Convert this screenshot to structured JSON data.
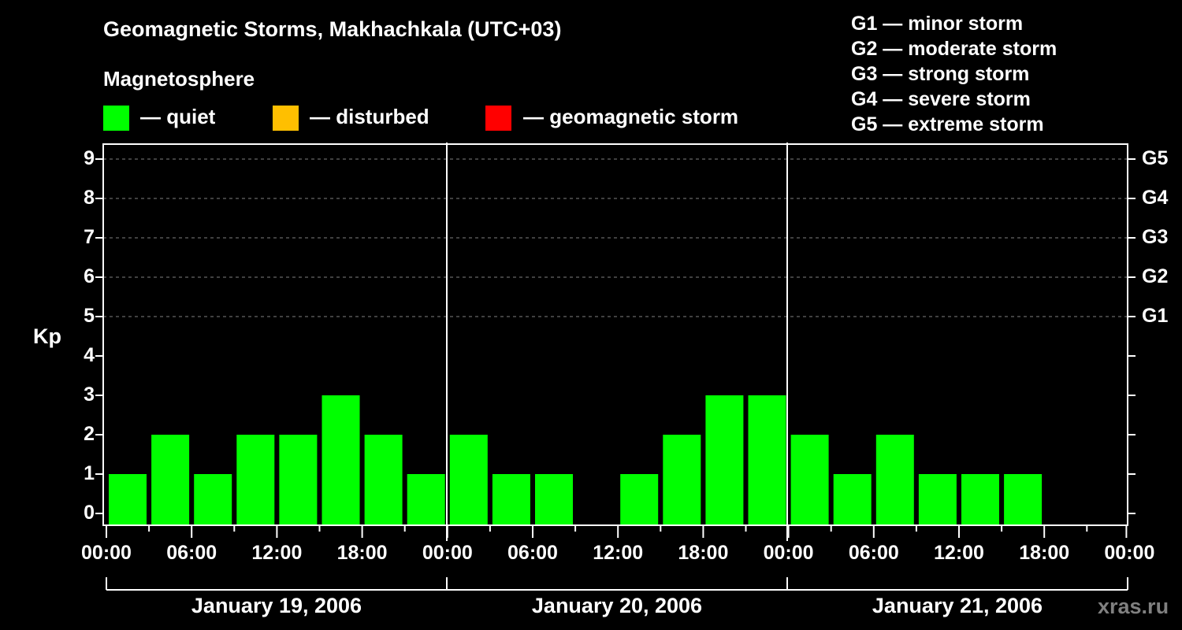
{
  "title": "Geomagnetic Storms, Makhachkala (UTC+03)",
  "legend": {
    "heading": "Magnetosphere",
    "items": [
      {
        "label": "— quiet",
        "color": "#00ff00"
      },
      {
        "label": "— disturbed",
        "color": "#ffbf00"
      },
      {
        "label": "— geomagnetic storm",
        "color": "#ff0000"
      }
    ]
  },
  "g_scale": [
    "G1 — minor storm",
    "G2 — moderate storm",
    "G3 — strong storm",
    "G4 — severe storm",
    "G5 — extreme storm"
  ],
  "y_axis": {
    "label": "Kp",
    "ticks": [
      "0",
      "1",
      "2",
      "3",
      "4",
      "5",
      "6",
      "7",
      "8",
      "9"
    ]
  },
  "g_ticks": [
    {
      "label": "G1",
      "kp": 5
    },
    {
      "label": "G2",
      "kp": 6
    },
    {
      "label": "G3",
      "kp": 7
    },
    {
      "label": "G4",
      "kp": 8
    },
    {
      "label": "G5",
      "kp": 9
    }
  ],
  "x_axis": {
    "ticks": [
      "00:00",
      "06:00",
      "12:00",
      "18:00",
      "00:00",
      "06:00",
      "12:00",
      "18:00",
      "00:00",
      "06:00",
      "12:00",
      "18:00",
      "00:00"
    ],
    "dates": [
      "January 19, 2006",
      "January 20, 2006",
      "January 21, 2006"
    ]
  },
  "watermark": "xras.ru",
  "chart_data": {
    "type": "bar",
    "title": "Geomagnetic Storms, Makhachkala (UTC+03)",
    "xlabel": "",
    "ylabel": "Kp",
    "ylim": [
      0,
      9
    ],
    "grid": "dashed horizontal at Kp 5-9",
    "interval_hours": 3,
    "categories": [
      "Jan 19 00:00",
      "Jan 19 03:00",
      "Jan 19 06:00",
      "Jan 19 09:00",
      "Jan 19 12:00",
      "Jan 19 15:00",
      "Jan 19 18:00",
      "Jan 19 21:00",
      "Jan 20 00:00",
      "Jan 20 03:00",
      "Jan 20 06:00",
      "Jan 20 09:00",
      "Jan 20 12:00",
      "Jan 20 15:00",
      "Jan 20 18:00",
      "Jan 20 21:00",
      "Jan 21 00:00",
      "Jan 21 03:00",
      "Jan 21 06:00",
      "Jan 21 09:00",
      "Jan 21 12:00",
      "Jan 21 15:00",
      "Jan 21 18:00",
      "Jan 21 21:00"
    ],
    "values": [
      1,
      2,
      1,
      2,
      2,
      3,
      2,
      1,
      2,
      1,
      1,
      0,
      1,
      2,
      3,
      3,
      2,
      1,
      2,
      1,
      1,
      1,
      null,
      null
    ],
    "colors": {
      "quiet": "#00ff00",
      "disturbed": "#ffbf00",
      "storm": "#ff0000"
    },
    "secondary_axis": {
      "G1": 5,
      "G2": 6,
      "G3": 7,
      "G4": 8,
      "G5": 9
    }
  }
}
